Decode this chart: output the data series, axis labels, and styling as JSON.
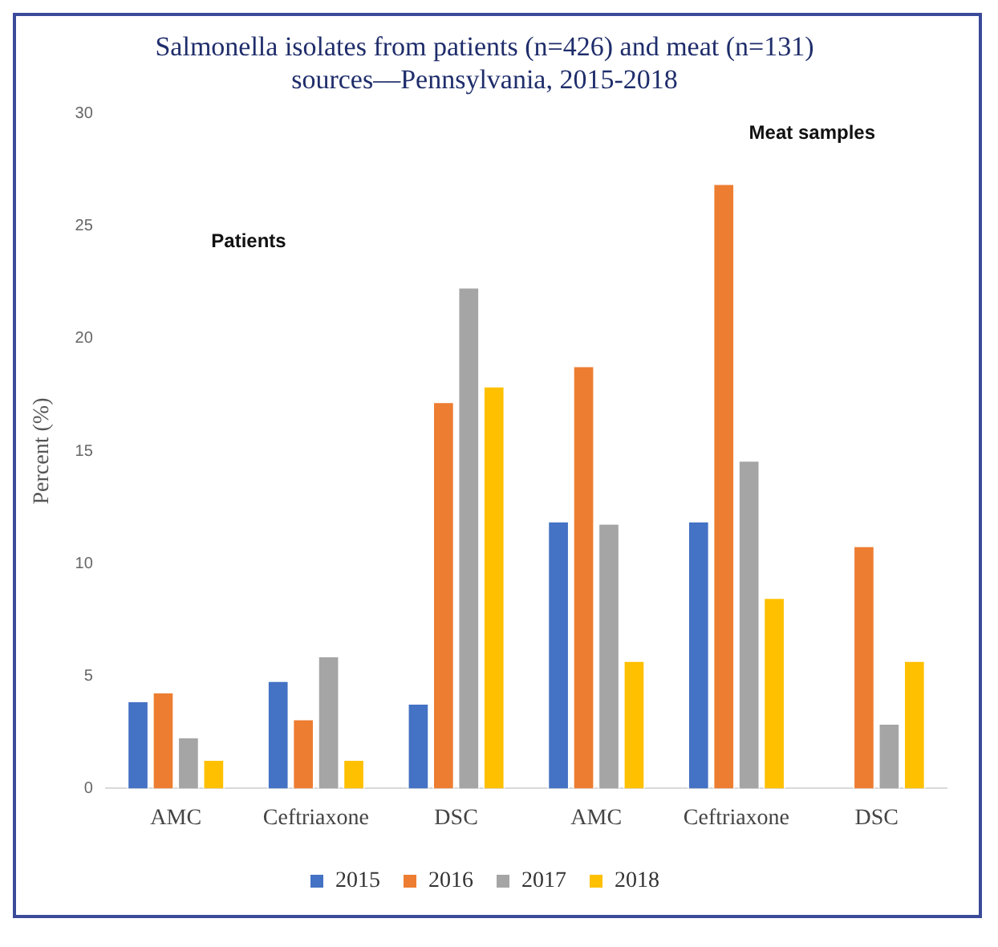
{
  "chart_data": {
    "type": "bar",
    "title": [
      "Salmonella isolates from patients (n=426) and meat (n=131)",
      "sources––Pennsylvania, 2015-2018"
    ],
    "ylabel": "Percent (%)",
    "categories": [
      "AMC",
      "Ceftriaxone",
      "DSC",
      "AMC",
      "Ceftriaxone",
      "DSC"
    ],
    "series": [
      {
        "name": "2015",
        "color": "#4472c4",
        "values": [
          3.9,
          4.8,
          3.8,
          11.9,
          11.9,
          null
        ]
      },
      {
        "name": "2016",
        "color": "#ed7d31",
        "values": [
          4.3,
          3.1,
          17.2,
          18.8,
          26.9,
          10.8
        ]
      },
      {
        "name": "2017",
        "color": "#a5a5a5",
        "values": [
          2.3,
          5.9,
          22.3,
          11.8,
          14.6,
          2.9
        ]
      },
      {
        "name": "2018",
        "color": "#ffc000",
        "values": [
          1.3,
          1.3,
          17.9,
          5.7,
          8.5,
          5.7
        ]
      }
    ],
    "ylim": [
      0,
      30
    ],
    "yticks": [
      0,
      5,
      10,
      15,
      20,
      25,
      30
    ],
    "grid": false,
    "legend": "bottom",
    "annotations": [
      "Patients",
      "Meat samples"
    ]
  }
}
